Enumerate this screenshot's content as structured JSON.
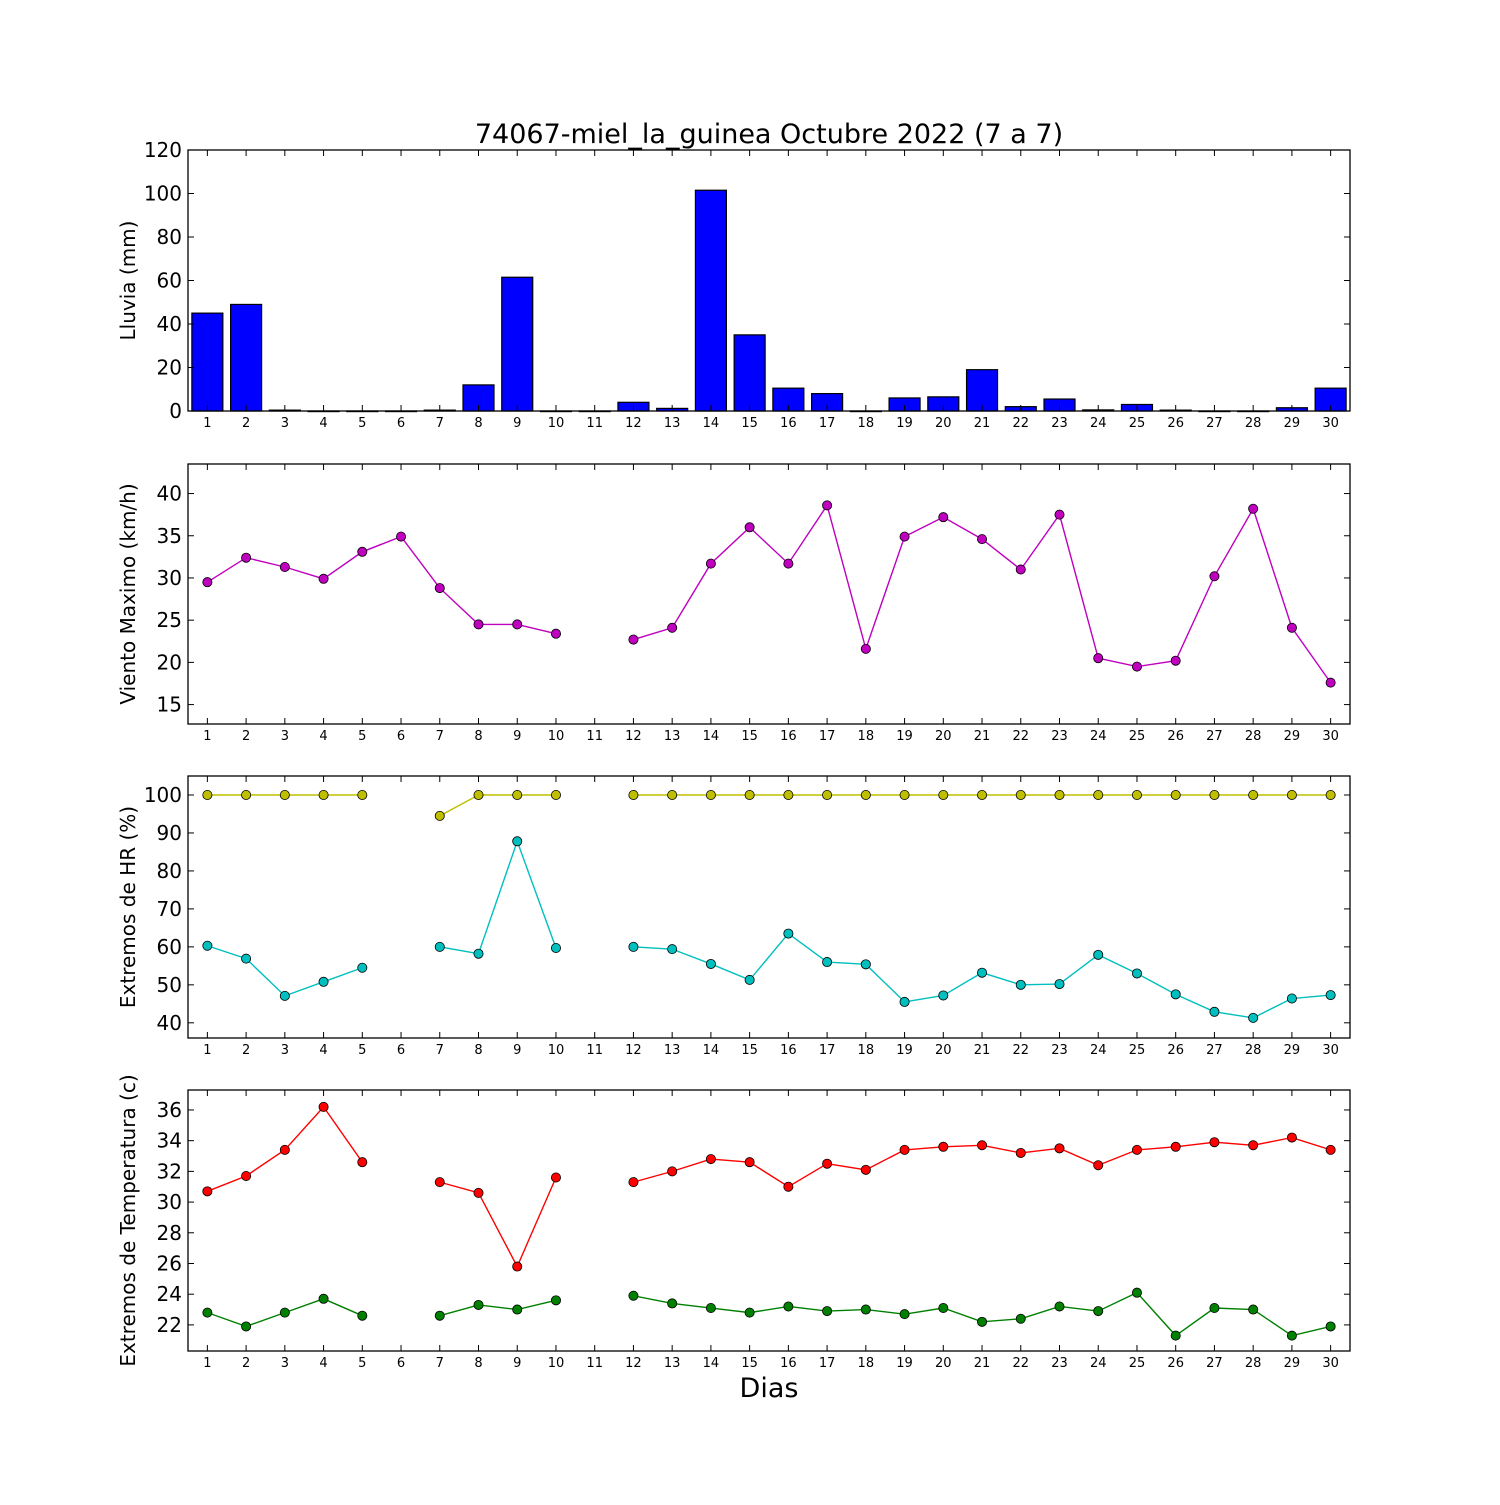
{
  "title": "74067-miel_la_guinea Octubre 2022  (7 a 7)",
  "xlabel": "Dias",
  "colors": {
    "rain": "#0000ff",
    "wind": "#bf00bf",
    "hr_max": "#bfbf00",
    "hr_min": "#00bfbf",
    "t_max": "#ff0000",
    "t_min": "#008000"
  },
  "chart_data": [
    {
      "type": "bar",
      "ylabel": "Lluvia (mm)",
      "ylim": [
        0,
        120
      ],
      "yticks": [
        0,
        20,
        40,
        60,
        80,
        100,
        120
      ],
      "x": [
        1,
        2,
        3,
        4,
        5,
        6,
        7,
        8,
        9,
        10,
        11,
        12,
        13,
        14,
        15,
        16,
        17,
        18,
        19,
        20,
        21,
        22,
        23,
        24,
        25,
        26,
        27,
        28,
        29,
        30
      ],
      "series": [
        {
          "color": "#0000ff",
          "values": [
            45,
            49,
            0.4,
            0,
            0,
            0,
            0.4,
            12,
            61.5,
            0,
            0,
            4,
            1.2,
            101.5,
            35,
            10.5,
            8,
            0,
            6,
            6.5,
            19,
            2,
            5.5,
            0.5,
            3,
            0.4,
            0,
            0,
            1.5,
            10.5
          ]
        }
      ],
      "grid": false
    },
    {
      "type": "line",
      "ylabel": "Viento Maximo (km/h)",
      "ylim": [
        12.7,
        43.5
      ],
      "yticks": [
        15,
        20,
        25,
        30,
        35,
        40
      ],
      "x": [
        1,
        2,
        3,
        4,
        5,
        6,
        7,
        8,
        9,
        10,
        11,
        12,
        13,
        14,
        15,
        16,
        17,
        18,
        19,
        20,
        21,
        22,
        23,
        24,
        25,
        26,
        27,
        28,
        29,
        30
      ],
      "series": [
        {
          "color": "#bf00bf",
          "values": [
            29.5,
            32.4,
            31.3,
            29.9,
            33.1,
            34.9,
            28.8,
            24.5,
            24.5,
            23.4,
            null,
            22.7,
            24.1,
            31.7,
            36,
            31.7,
            38.6,
            21.6,
            34.9,
            37.2,
            34.6,
            31,
            37.5,
            20.5,
            19.5,
            20.2,
            30.2,
            38.2,
            24.1,
            17.6
          ]
        }
      ],
      "grid": false
    },
    {
      "type": "line",
      "ylabel": "Extremos de HR (%)",
      "ylim": [
        36,
        105
      ],
      "yticks": [
        40,
        50,
        60,
        70,
        80,
        90,
        100
      ],
      "x": [
        1,
        2,
        3,
        4,
        5,
        6,
        7,
        8,
        9,
        10,
        11,
        12,
        13,
        14,
        15,
        16,
        17,
        18,
        19,
        20,
        21,
        22,
        23,
        24,
        25,
        26,
        27,
        28,
        29,
        30
      ],
      "series": [
        {
          "color": "#bfbf00",
          "values": [
            100,
            100,
            100,
            100,
            100,
            null,
            94.5,
            100,
            100,
            100,
            null,
            100,
            100,
            100,
            100,
            100,
            100,
            100,
            100,
            100,
            100,
            100,
            100,
            100,
            100,
            100,
            100,
            100,
            100,
            100
          ]
        },
        {
          "color": "#00bfbf",
          "values": [
            60.3,
            56.9,
            47.1,
            50.8,
            54.5,
            null,
            60,
            58.2,
            87.8,
            59.7,
            null,
            60,
            59.4,
            55.5,
            51.3,
            63.5,
            56,
            55.4,
            45.5,
            47.2,
            53.2,
            50,
            50.2,
            57.9,
            53,
            47.5,
            42.9,
            41.3,
            46.4,
            47.3
          ]
        }
      ],
      "grid": false
    },
    {
      "type": "line",
      "ylabel": "Extremos de Temperatura (c)",
      "ylim": [
        20.3,
        37.3
      ],
      "yticks": [
        22,
        24,
        26,
        28,
        30,
        32,
        34,
        36
      ],
      "x": [
        1,
        2,
        3,
        4,
        5,
        6,
        7,
        8,
        9,
        10,
        11,
        12,
        13,
        14,
        15,
        16,
        17,
        18,
        19,
        20,
        21,
        22,
        23,
        24,
        25,
        26,
        27,
        28,
        29,
        30
      ],
      "series": [
        {
          "color": "#ff0000",
          "values": [
            30.7,
            31.7,
            33.4,
            36.2,
            32.6,
            null,
            31.3,
            30.6,
            25.8,
            31.6,
            null,
            31.3,
            32,
            32.8,
            32.6,
            31,
            32.5,
            32.1,
            33.4,
            33.6,
            33.7,
            33.2,
            33.5,
            32.4,
            33.4,
            33.6,
            33.9,
            33.7,
            34.2,
            33.4
          ]
        },
        {
          "color": "#008000",
          "values": [
            22.8,
            21.9,
            22.8,
            23.7,
            22.6,
            null,
            22.6,
            23.3,
            23,
            23.6,
            null,
            23.9,
            23.4,
            23.1,
            22.8,
            23.2,
            22.9,
            23,
            22.7,
            23.1,
            22.2,
            22.4,
            23.2,
            22.9,
            24.1,
            21.3,
            23.1,
            23,
            21.3,
            21.9
          ]
        }
      ],
      "grid": false
    }
  ]
}
